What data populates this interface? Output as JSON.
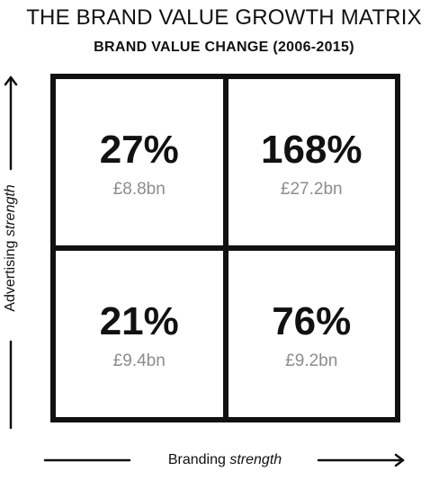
{
  "title": "THE BRAND VALUE GROWTH MATRIX",
  "subtitle": "BRAND VALUE CHANGE (2006-2015)",
  "axes": {
    "y": {
      "text": "Advertising",
      "emphasis": "strength"
    },
    "x": {
      "text": "Branding",
      "emphasis": "strength"
    }
  },
  "quadrants": {
    "top_left": {
      "percent": "27%",
      "value": "£8.8bn"
    },
    "top_right": {
      "percent": "168%",
      "value": "£27.2bn"
    },
    "bottom_left": {
      "percent": "21%",
      "value": "£9.4bn"
    },
    "bottom_right": {
      "percent": "76%",
      "value": "£9.2bn"
    }
  },
  "colors": {
    "ink": "#111111",
    "value_grey": "#8c8c8c",
    "background": "#ffffff"
  },
  "icons": [
    "up-arrow-icon",
    "right-arrow-icon"
  ]
}
